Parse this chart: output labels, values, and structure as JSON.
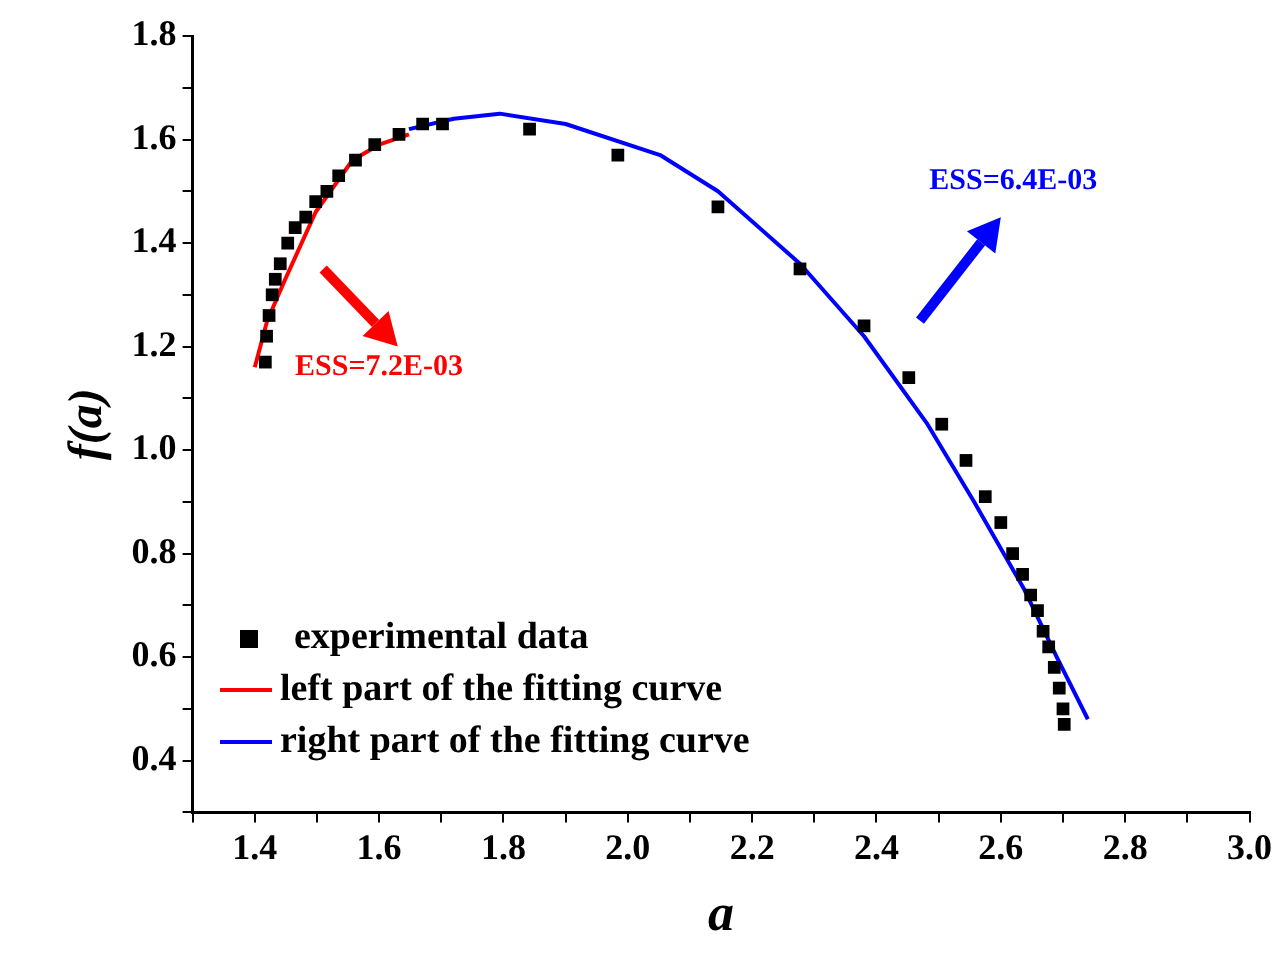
{
  "chart_data": {
    "type": "scatter",
    "xlabel": "a",
    "ylabel": "f(a)",
    "xlim": [
      1.3,
      3.0
    ],
    "ylim": [
      0.3,
      1.8
    ],
    "xticks": [
      {
        "value": 1.3,
        "label": null
      },
      1.4,
      {
        "value": 1.5,
        "label": null
      },
      1.6,
      {
        "value": 1.7,
        "label": null
      },
      1.8,
      {
        "value": 1.9,
        "label": null
      },
      {
        "value": 2.0,
        "label": "2.0"
      },
      {
        "value": 2.1,
        "label": null
      },
      2.2,
      {
        "value": 2.3,
        "label": null
      },
      2.4,
      {
        "value": 2.5,
        "label": null
      },
      2.6,
      {
        "value": 2.7,
        "label": null
      },
      2.8,
      {
        "value": 2.9,
        "label": null
      },
      {
        "value": 3.0,
        "label": "3.0"
      }
    ],
    "yticks": [
      {
        "value": 0.3,
        "label": null
      },
      0.4,
      {
        "value": 0.5,
        "label": null
      },
      0.6,
      {
        "value": 0.7,
        "label": null
      },
      0.8,
      {
        "value": 0.9,
        "label": null
      },
      {
        "value": 1.0,
        "label": "1.0"
      },
      {
        "value": 1.1,
        "label": null
      },
      1.2,
      {
        "value": 1.3,
        "label": null
      },
      1.4,
      {
        "value": 1.5,
        "label": null
      },
      1.6,
      {
        "value": 1.7,
        "label": null
      },
      1.8
    ],
    "grid": false,
    "legend": "bottom left",
    "series": [
      {
        "name": "experimental data",
        "type": "scatter",
        "marker": "square",
        "color": "#000000",
        "x": [
          1.417,
          1.419,
          1.423,
          1.428,
          1.433,
          1.441,
          1.453,
          1.465,
          1.482,
          1.498,
          1.516,
          1.535,
          1.562,
          1.593,
          1.632,
          1.67,
          1.702,
          1.842,
          1.984,
          2.145,
          2.277,
          2.38,
          2.452,
          2.505,
          2.544,
          2.575,
          2.6,
          2.619,
          2.635,
          2.648,
          2.659,
          2.668,
          2.677,
          2.686,
          2.694,
          2.7,
          2.702
        ],
        "values": [
          1.17,
          1.22,
          1.26,
          1.3,
          1.33,
          1.36,
          1.4,
          1.43,
          1.45,
          1.48,
          1.5,
          1.53,
          1.56,
          1.59,
          1.61,
          1.63,
          1.63,
          1.62,
          1.57,
          1.47,
          1.35,
          1.24,
          1.14,
          1.05,
          0.98,
          0.91,
          0.86,
          0.8,
          0.76,
          0.72,
          0.69,
          0.65,
          0.62,
          0.58,
          0.54,
          0.5,
          0.47
        ]
      },
      {
        "name": "left part of the fitting curve",
        "type": "line",
        "marker": "none",
        "color": "#ff0000",
        "x": [
          1.4,
          1.42,
          1.449,
          1.498,
          1.557,
          1.6,
          1.648
        ],
        "values": [
          1.16,
          1.25,
          1.33,
          1.46,
          1.56,
          1.59,
          1.61
        ]
      },
      {
        "name": "right part of the fitting curve",
        "type": "line",
        "marker": "none",
        "color": "#0000ff",
        "x": [
          1.648,
          1.72,
          1.794,
          1.9,
          2.052,
          2.145,
          2.277,
          2.38,
          2.482,
          2.557,
          2.638,
          2.69,
          2.74
        ],
        "values": [
          1.62,
          1.64,
          1.65,
          1.63,
          1.57,
          1.5,
          1.36,
          1.22,
          1.05,
          0.9,
          0.73,
          0.6,
          0.48
        ]
      }
    ],
    "annotations": [
      "ESS=7.2E-03",
      "ESS=6.4E-03"
    ]
  }
}
